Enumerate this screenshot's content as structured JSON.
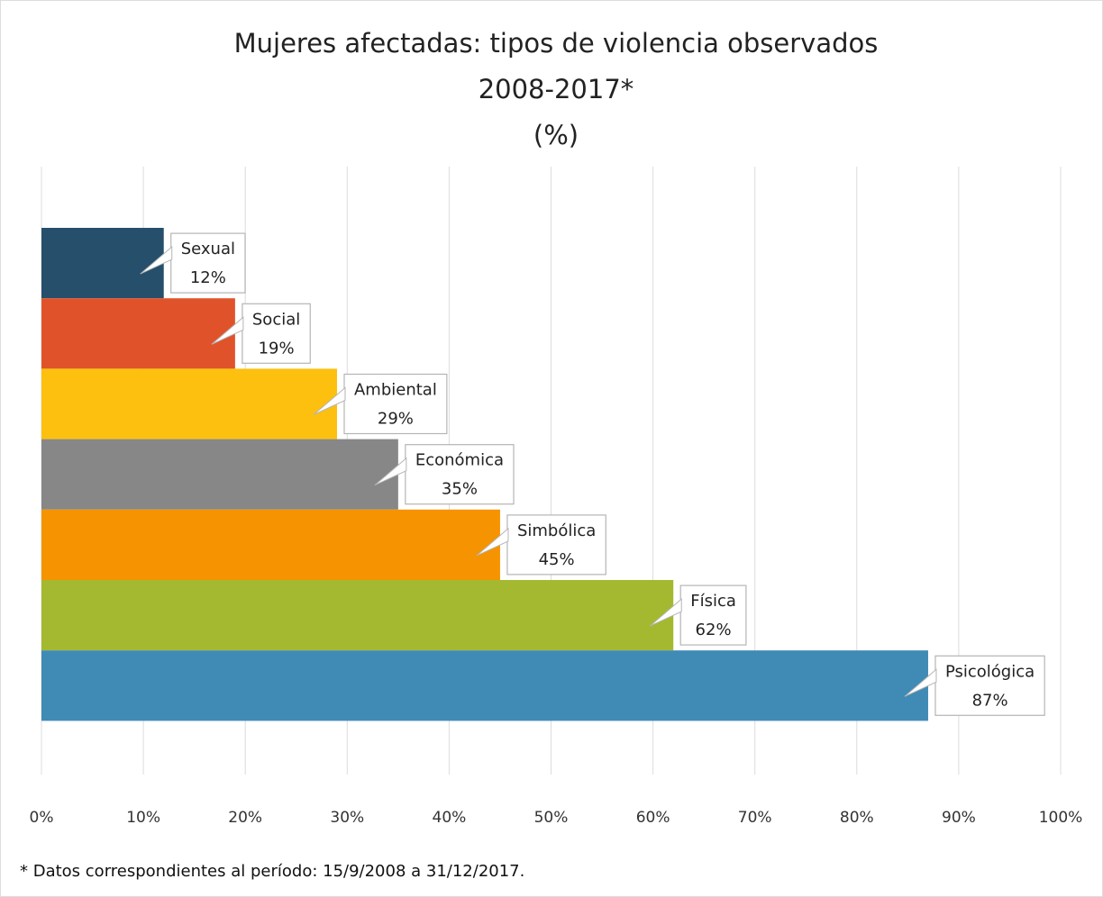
{
  "chart_data": {
    "type": "barh",
    "title": "Mujeres afectadas: tipos de violencia observados",
    "subtitle": "2008-2017*",
    "unit_label": "(%)",
    "note": "* Datos correspondientes al período: 15/9/2008 a 31/12/2017.",
    "categories": [
      "Sexual",
      "Social",
      "Ambiental",
      "Económica",
      "Simbólica",
      "Física",
      "Psicológica"
    ],
    "values": [
      12,
      19,
      29,
      35,
      45,
      62,
      87
    ],
    "value_labels": [
      "12%",
      "19%",
      "29%",
      "35%",
      "45%",
      "62%",
      "87%"
    ],
    "colors": [
      "#264f6b",
      "#e0532a",
      "#fdc00f",
      "#878787",
      "#f59300",
      "#a4b92f",
      "#3f8bb5"
    ],
    "xlim": [
      0,
      100
    ],
    "xticks": [
      {
        "value": 0,
        "label": "0%"
      },
      {
        "value": 10,
        "label": "10%"
      },
      {
        "value": 20,
        "label": "20%"
      },
      {
        "value": 30,
        "label": "30%"
      },
      {
        "value": 40,
        "label": "40%"
      },
      {
        "value": 50,
        "label": "50%"
      },
      {
        "value": 60,
        "label": "60%"
      },
      {
        "value": 70,
        "label": "70%"
      },
      {
        "value": 80,
        "label": "80%"
      },
      {
        "value": 90,
        "label": "90%"
      },
      {
        "value": 100,
        "label": "100%"
      }
    ],
    "grid": true
  }
}
